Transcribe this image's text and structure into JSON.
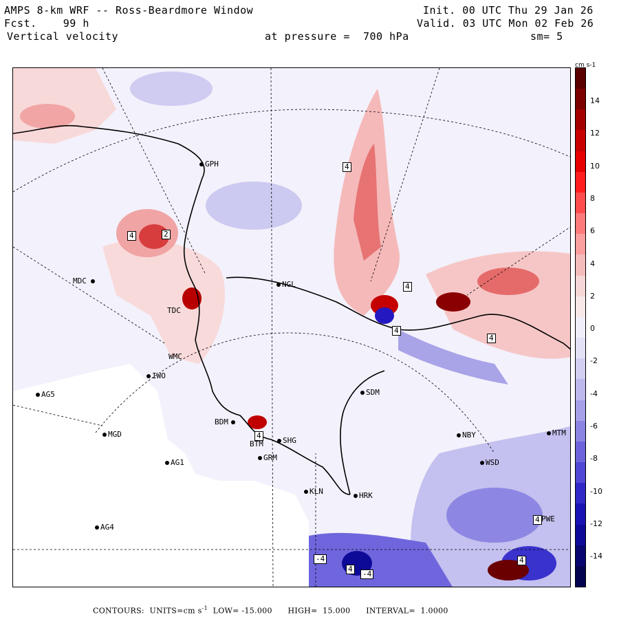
{
  "header": {
    "title": "AMPS 8-km WRF -- Ross-Beardmore Window",
    "fcst_label": "Fcst.",
    "fcst_value": "99 h",
    "field": "Vertical velocity",
    "pressure_label": "at pressure =",
    "pressure_value": "700 hPa",
    "smoothing": "sm= 5",
    "init_label": "Init.",
    "init_value": "00 UTC Thu 29 Jan 26",
    "valid_label": "Valid.",
    "valid_value": "03 UTC Mon 02 Feb 26"
  },
  "colorbar": {
    "units": "cm s-1",
    "ticks": [
      "14",
      "12",
      "10",
      "8",
      "6",
      "4",
      "2",
      "0",
      "-2",
      "-4",
      "-6",
      "-8",
      "-10",
      "-12",
      "-14"
    ],
    "colors_top_to_bottom": [
      "#5a0000",
      "#7d0000",
      "#a50000",
      "#c80000",
      "#e60000",
      "#ff1e1e",
      "#ff4d4d",
      "#ff7a7a",
      "#fa9e9e",
      "#f5bcbc",
      "#f6d6d6",
      "#f8e8e8",
      "#f0eef9",
      "#e3e1f6",
      "#d2cff2",
      "#bdb9ee",
      "#a5a0e8",
      "#8a83e2",
      "#6d64dc",
      "#5047d4",
      "#3128c8",
      "#1a13b4",
      "#0e0a98",
      "#080570",
      "#050350"
    ]
  },
  "stations": [
    {
      "id": "GPH"
    },
    {
      "id": "MDC"
    },
    {
      "id": "NGL"
    },
    {
      "id": "TDC"
    },
    {
      "id": "WMC"
    },
    {
      "id": "IWO"
    },
    {
      "id": "AG5"
    },
    {
      "id": "SDM"
    },
    {
      "id": "BDM"
    },
    {
      "id": "MGD"
    },
    {
      "id": "BTM"
    },
    {
      "id": "SHG"
    },
    {
      "id": "NBY"
    },
    {
      "id": "MTM"
    },
    {
      "id": "GRM"
    },
    {
      "id": "AG1"
    },
    {
      "id": "WSD"
    },
    {
      "id": "KLN"
    },
    {
      "id": "HRK"
    },
    {
      "id": "AG4"
    },
    {
      "id": "PWE"
    }
  ],
  "contour_labels": [
    "4",
    "4",
    "2",
    "4",
    "4",
    "4",
    "4",
    "-4",
    "4",
    "-4",
    "4",
    "4"
  ],
  "footer": {
    "contours_label": "CONTOURS:",
    "units_label": "UNITS=cm s",
    "units_sup": "-1",
    "low_label": "LOW=",
    "low_value": "-15.000",
    "high_label": "HIGH=",
    "high_value": "15.000",
    "interval_label": "INTERVAL=",
    "interval_value": "1.0000"
  }
}
